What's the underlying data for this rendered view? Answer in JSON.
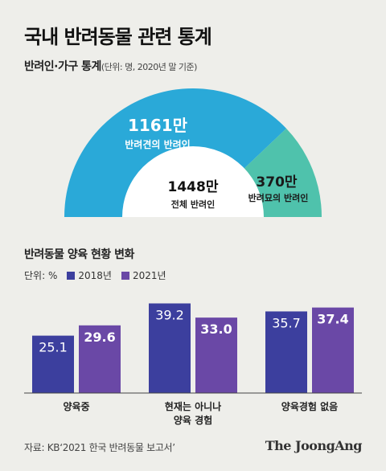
{
  "title": "국내 반려동물 관련 통계",
  "footer": {
    "source": "자료: KB‘2021 한국 반려동물 보고서’",
    "brand": "The JoongAng"
  },
  "colors": {
    "dog": "#2aa9d8",
    "cat": "#4fc2ac",
    "center": "#ffffff",
    "y2018": "#3c3f9e",
    "y2021": "#6a48a6",
    "background": "#eeeeea"
  },
  "chart_data": [
    {
      "type": "pie",
      "title": "반려인·가구 통계",
      "subtitle": "(단위: 명, 2020년 말 기준)",
      "center": {
        "value": "1448만",
        "label": "전체 반려인"
      },
      "slices": [
        {
          "value": 1161,
          "value_label": "1161만",
          "label": "반려견의 반려인",
          "color": "#2aa9d8"
        },
        {
          "value": 370,
          "value_label": "370만",
          "label": "반려묘의 반려인",
          "color": "#4fc2ac"
        }
      ]
    },
    {
      "type": "bar",
      "title": "반려동물 양육 현황 변화",
      "unit_label": "단위: %",
      "categories": [
        "양육중",
        "현재는 아니나\n양육 경험",
        "양육경험 없음"
      ],
      "series": [
        {
          "name": "2018년",
          "values": [
            25.1,
            39.2,
            35.7
          ],
          "labels": [
            "25.1",
            "39.2",
            "35.7"
          ],
          "color": "#3c3f9e"
        },
        {
          "name": "2021년",
          "values": [
            29.6,
            33.0,
            37.4
          ],
          "labels": [
            "29.6",
            "33.0",
            "37.4"
          ],
          "color": "#6a48a6"
        }
      ],
      "ylim": [
        0,
        45
      ],
      "grid": false,
      "legend": "top-left"
    }
  ]
}
